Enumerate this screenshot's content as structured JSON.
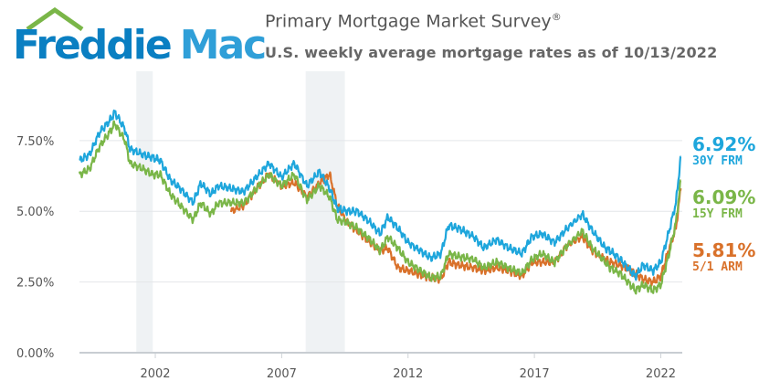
{
  "header": {
    "logo_word1": "Freddie",
    "logo_word2": "Mac",
    "title": "Primary Mortgage Market Survey",
    "title_mark": "®",
    "subtitle": "U.S. weekly average mortgage rates as of 10/13/2022"
  },
  "colors": {
    "frm30": "#1ea6dc",
    "frm15": "#7ab648",
    "arm51": "#d9712a",
    "recession_band": "#eff2f4",
    "gridline": "#e4e6e9",
    "axis_text": "#555555"
  },
  "latest": [
    {
      "value": "6.92%",
      "label": "30Y FRM",
      "color": "#1ea6dc"
    },
    {
      "value": "6.09%",
      "label": "15Y FRM",
      "color": "#7ab648"
    },
    {
      "value": "5.81%",
      "label": "5/1 ARM",
      "color": "#d9712a"
    }
  ],
  "chart_data": {
    "type": "line",
    "xlim": [
      1999.0,
      2022.85
    ],
    "ylim": [
      0,
      9.4
    ],
    "x_ticks": [
      2002,
      2007,
      2012,
      2017,
      2022
    ],
    "x_tick_labels": [
      "2002",
      "2007",
      "2012",
      "2017",
      "2022"
    ],
    "y_ticks": [
      0,
      2.5,
      5,
      7.5
    ],
    "y_tick_labels": [
      "0.00%",
      "2.50%",
      "5.00%",
      "7.50%"
    ],
    "grid": "horizontal",
    "recession_bands": [
      [
        2001.25,
        2001.9
      ],
      [
        2007.95,
        2009.5
      ]
    ],
    "series": [
      {
        "name": "30Y FRM",
        "color": "#1ea6dc",
        "x": [
          1999.0,
          1999.4,
          1999.8,
          2000.2,
          2000.4,
          2000.8,
          2001.0,
          2001.5,
          2001.9,
          2002.2,
          2002.6,
          2003.0,
          2003.5,
          2003.8,
          2004.2,
          2004.5,
          2005.0,
          2005.5,
          2006.0,
          2006.5,
          2007.0,
          2007.5,
          2008.0,
          2008.5,
          2008.9,
          2009.2,
          2009.6,
          2010.0,
          2010.5,
          2010.9,
          2011.2,
          2011.6,
          2012.0,
          2012.5,
          2012.9,
          2013.3,
          2013.6,
          2014.0,
          2014.6,
          2015.0,
          2015.5,
          2016.0,
          2016.5,
          2016.9,
          2017.3,
          2017.8,
          2018.3,
          2018.9,
          2019.3,
          2019.8,
          2020.0,
          2020.4,
          2020.8,
          2021.0,
          2021.3,
          2021.7,
          2022.0,
          2022.3,
          2022.6,
          2022.79
        ],
        "y": [
          6.8,
          7.0,
          7.8,
          8.2,
          8.5,
          7.9,
          7.2,
          7.0,
          6.9,
          6.8,
          6.1,
          5.8,
          5.3,
          6.0,
          5.6,
          5.9,
          5.8,
          5.7,
          6.2,
          6.7,
          6.2,
          6.7,
          5.9,
          6.4,
          5.8,
          5.1,
          5.0,
          5.0,
          4.6,
          4.2,
          4.8,
          4.4,
          3.9,
          3.6,
          3.35,
          3.5,
          4.5,
          4.4,
          4.1,
          3.7,
          4.0,
          3.7,
          3.5,
          4.1,
          4.2,
          3.9,
          4.4,
          4.9,
          4.3,
          3.7,
          3.6,
          3.3,
          2.9,
          2.7,
          3.1,
          2.9,
          3.2,
          4.2,
          5.3,
          6.92
        ]
      },
      {
        "name": "15Y FRM",
        "color": "#7ab648",
        "x": [
          1999.0,
          1999.4,
          1999.8,
          2000.2,
          2000.4,
          2000.8,
          2001.0,
          2001.5,
          2001.9,
          2002.2,
          2002.6,
          2003.0,
          2003.5,
          2003.8,
          2004.2,
          2004.5,
          2005.0,
          2005.5,
          2006.0,
          2006.5,
          2007.0,
          2007.5,
          2008.0,
          2008.5,
          2008.9,
          2009.2,
          2009.6,
          2010.0,
          2010.5,
          2010.9,
          2011.2,
          2011.6,
          2012.0,
          2012.5,
          2012.9,
          2013.3,
          2013.6,
          2014.0,
          2014.6,
          2015.0,
          2015.5,
          2016.0,
          2016.5,
          2016.9,
          2017.3,
          2017.8,
          2018.3,
          2018.9,
          2019.3,
          2019.8,
          2020.0,
          2020.4,
          2020.8,
          2021.0,
          2021.3,
          2021.7,
          2022.0,
          2022.3,
          2022.6,
          2022.79
        ],
        "y": [
          6.3,
          6.5,
          7.3,
          7.8,
          8.1,
          7.5,
          6.7,
          6.5,
          6.3,
          6.3,
          5.6,
          5.2,
          4.7,
          5.3,
          4.9,
          5.3,
          5.3,
          5.3,
          5.8,
          6.3,
          5.9,
          6.3,
          5.4,
          5.9,
          5.5,
          4.7,
          4.6,
          4.4,
          4.0,
          3.6,
          4.1,
          3.7,
          3.2,
          2.9,
          2.65,
          2.7,
          3.5,
          3.4,
          3.3,
          3.0,
          3.2,
          3.0,
          2.8,
          3.3,
          3.5,
          3.2,
          3.8,
          4.3,
          3.7,
          3.2,
          3.0,
          2.8,
          2.4,
          2.2,
          2.4,
          2.2,
          2.4,
          3.4,
          4.6,
          6.09
        ]
      },
      {
        "name": "5/1 ARM",
        "color": "#d9712a",
        "x": [
          2005.0,
          2005.5,
          2006.0,
          2006.5,
          2007.0,
          2007.5,
          2008.0,
          2008.5,
          2008.9,
          2009.2,
          2009.6,
          2010.0,
          2010.5,
          2010.9,
          2011.2,
          2011.6,
          2012.0,
          2012.5,
          2012.9,
          2013.3,
          2013.6,
          2014.0,
          2014.6,
          2015.0,
          2015.5,
          2016.0,
          2016.5,
          2016.9,
          2017.3,
          2017.8,
          2018.3,
          2018.9,
          2019.3,
          2019.8,
          2020.0,
          2020.4,
          2020.8,
          2021.0,
          2021.3,
          2021.7,
          2022.0,
          2022.3,
          2022.6,
          2022.79
        ],
        "y": [
          5.0,
          5.2,
          5.8,
          6.3,
          5.9,
          6.0,
          5.5,
          6.0,
          6.3,
          5.2,
          4.6,
          4.3,
          3.9,
          3.6,
          3.7,
          3.0,
          2.9,
          2.75,
          2.65,
          2.6,
          3.2,
          3.1,
          3.0,
          2.9,
          3.0,
          2.9,
          2.7,
          3.2,
          3.2,
          3.2,
          3.8,
          4.1,
          3.6,
          3.3,
          3.2,
          3.1,
          2.9,
          2.8,
          2.6,
          2.5,
          2.7,
          3.6,
          4.4,
          5.81
        ]
      }
    ]
  }
}
